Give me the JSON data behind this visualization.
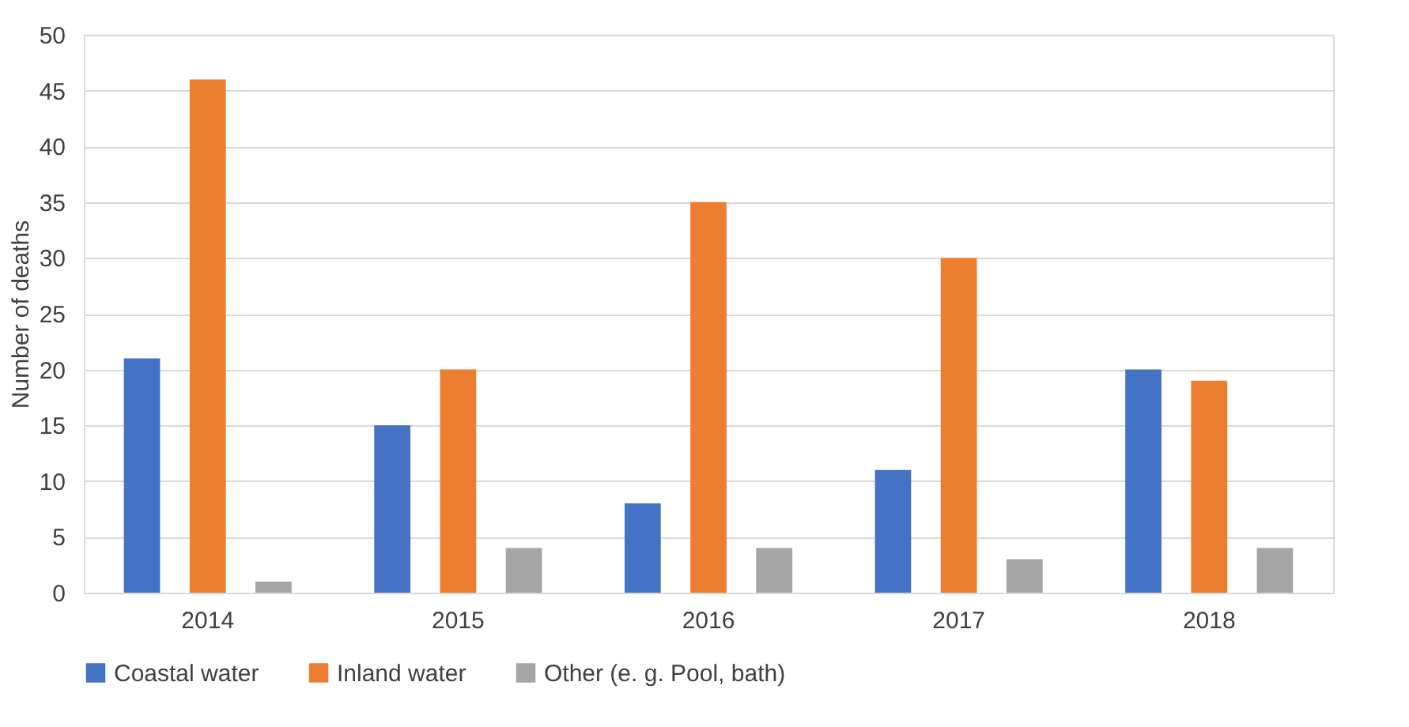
{
  "chart_data": {
    "type": "bar",
    "ylabel": "Number of deaths",
    "categories": [
      "2014",
      "2015",
      "2016",
      "2017",
      "2018"
    ],
    "series": [
      {
        "name": "Coastal water",
        "color": "#4472c4",
        "values": [
          21,
          15,
          8,
          11,
          20
        ]
      },
      {
        "name": "Inland water",
        "color": "#ed7d31",
        "values": [
          46,
          20,
          35,
          30,
          19
        ]
      },
      {
        "name": "Other (e. g. Pool, bath)",
        "color": "#a5a5a5",
        "values": [
          1,
          4,
          4,
          3,
          4
        ]
      }
    ],
    "ylim": [
      0,
      50
    ],
    "yticks": [
      0,
      5,
      10,
      15,
      20,
      25,
      30,
      35,
      40,
      45,
      50
    ],
    "grid": "y",
    "legend": "bottom"
  }
}
